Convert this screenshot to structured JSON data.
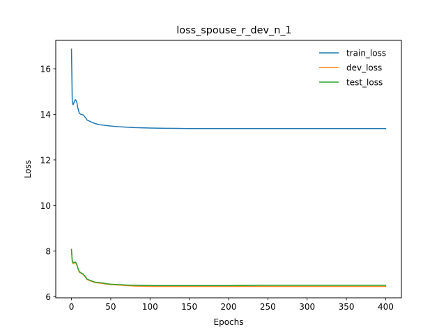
{
  "chart_data": {
    "type": "line",
    "title": "loss_spouse_r_dev_n_1",
    "xlabel": "Epochs",
    "ylabel": "Loss",
    "xlim": [
      -20,
      420
    ],
    "ylim": [
      5.95,
      17.25
    ],
    "xticks": [
      0,
      50,
      100,
      150,
      200,
      250,
      300,
      350,
      400
    ],
    "yticks": [
      6,
      8,
      10,
      12,
      14,
      16
    ],
    "grid": false,
    "legend_position": "top-right",
    "series": [
      {
        "name": "train_loss",
        "color": "#1f77b4",
        "points": [
          [
            0,
            16.87
          ],
          [
            1,
            14.6
          ],
          [
            2,
            14.42
          ],
          [
            3,
            14.5
          ],
          [
            4,
            14.6
          ],
          [
            5,
            14.65
          ],
          [
            6,
            14.6
          ],
          [
            7,
            14.5
          ],
          [
            8,
            14.3
          ],
          [
            10,
            14.05
          ],
          [
            12,
            14.0
          ],
          [
            15,
            13.98
          ],
          [
            18,
            13.85
          ],
          [
            20,
            13.75
          ],
          [
            25,
            13.67
          ],
          [
            30,
            13.6
          ],
          [
            35,
            13.55
          ],
          [
            40,
            13.53
          ],
          [
            50,
            13.49
          ],
          [
            60,
            13.46
          ],
          [
            70,
            13.44
          ],
          [
            80,
            13.42
          ],
          [
            100,
            13.4
          ],
          [
            120,
            13.39
          ],
          [
            150,
            13.38
          ],
          [
            200,
            13.38
          ],
          [
            250,
            13.38
          ],
          [
            300,
            13.38
          ],
          [
            350,
            13.38
          ],
          [
            400,
            13.38
          ]
        ]
      },
      {
        "name": "dev_loss",
        "color": "#ff7f0e",
        "points": [
          [
            0,
            8.05
          ],
          [
            1,
            7.55
          ],
          [
            2,
            7.45
          ],
          [
            3,
            7.5
          ],
          [
            4,
            7.48
          ],
          [
            5,
            7.5
          ],
          [
            6,
            7.45
          ],
          [
            7,
            7.38
          ],
          [
            8,
            7.25
          ],
          [
            10,
            7.08
          ],
          [
            12,
            7.03
          ],
          [
            15,
            6.97
          ],
          [
            18,
            6.85
          ],
          [
            20,
            6.75
          ],
          [
            25,
            6.68
          ],
          [
            30,
            6.62
          ],
          [
            35,
            6.6
          ],
          [
            40,
            6.58
          ],
          [
            45,
            6.55
          ],
          [
            50,
            6.53
          ],
          [
            60,
            6.51
          ],
          [
            70,
            6.49
          ],
          [
            80,
            6.47
          ],
          [
            100,
            6.45
          ],
          [
            150,
            6.45
          ],
          [
            200,
            6.45
          ],
          [
            250,
            6.45
          ],
          [
            300,
            6.45
          ],
          [
            350,
            6.45
          ],
          [
            400,
            6.45
          ]
        ]
      },
      {
        "name": "test_loss",
        "color": "#2ca02c",
        "points": [
          [
            0,
            8.08
          ],
          [
            1,
            7.58
          ],
          [
            2,
            7.48
          ],
          [
            3,
            7.52
          ],
          [
            4,
            7.5
          ],
          [
            5,
            7.52
          ],
          [
            6,
            7.47
          ],
          [
            7,
            7.4
          ],
          [
            8,
            7.27
          ],
          [
            10,
            7.1
          ],
          [
            12,
            7.05
          ],
          [
            15,
            6.99
          ],
          [
            18,
            6.87
          ],
          [
            20,
            6.77
          ],
          [
            25,
            6.7
          ],
          [
            30,
            6.64
          ],
          [
            35,
            6.62
          ],
          [
            40,
            6.6
          ],
          [
            45,
            6.57
          ],
          [
            50,
            6.55
          ],
          [
            60,
            6.53
          ],
          [
            70,
            6.51
          ],
          [
            80,
            6.5
          ],
          [
            100,
            6.49
          ],
          [
            150,
            6.49
          ],
          [
            200,
            6.49
          ],
          [
            250,
            6.5
          ],
          [
            300,
            6.5
          ],
          [
            350,
            6.5
          ],
          [
            400,
            6.5
          ]
        ]
      }
    ]
  }
}
